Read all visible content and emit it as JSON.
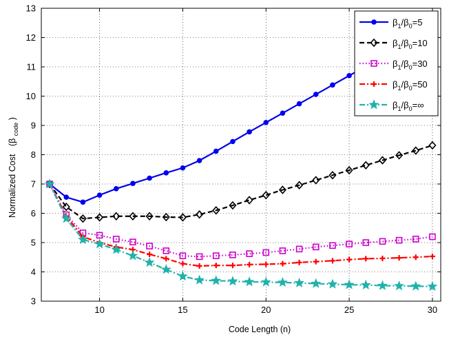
{
  "chart_data": {
    "type": "line",
    "xlabel": "Code Length (n)",
    "ylabel": "Normalized Cost",
    "ylabel_suffix_main": "(β",
    "ylabel_suffix_sub": "code",
    "ylabel_suffix_end": ")",
    "xlim": [
      6.5,
      30.5
    ],
    "ylim": [
      3,
      13
    ],
    "xticks": [
      10,
      15,
      20,
      25,
      30
    ],
    "yticks": [
      3,
      4,
      5,
      6,
      7,
      8,
      9,
      10,
      11,
      12,
      13
    ],
    "grid": true,
    "legend_position": "top-right",
    "x": [
      7,
      8,
      9,
      10,
      11,
      12,
      13,
      14,
      15,
      16,
      17,
      18,
      19,
      20,
      21,
      22,
      23,
      24,
      25,
      26,
      27,
      28,
      29,
      30
    ],
    "series": [
      {
        "name": "β1/β0=5",
        "legend_parts": [
          "β",
          "1",
          "/β",
          "0",
          "=5"
        ],
        "color": "#0000ee",
        "dash": "solid",
        "marker": "circle",
        "values": [
          7.0,
          6.55,
          6.38,
          6.62,
          6.84,
          7.02,
          7.2,
          7.38,
          7.55,
          7.8,
          8.12,
          8.45,
          8.78,
          9.1,
          9.42,
          9.74,
          10.06,
          10.38,
          10.7,
          11.02,
          11.34,
          11.66,
          11.98,
          12.3
        ]
      },
      {
        "name": "β1/β0=10",
        "legend_parts": [
          "β",
          "1",
          "/β",
          "0",
          "=10"
        ],
        "color": "#000000",
        "dash": "dashed",
        "marker": "diamond",
        "values": [
          7.0,
          6.22,
          5.82,
          5.86,
          5.9,
          5.9,
          5.9,
          5.87,
          5.86,
          5.96,
          6.1,
          6.27,
          6.45,
          6.62,
          6.8,
          6.96,
          7.13,
          7.3,
          7.47,
          7.64,
          7.81,
          7.98,
          8.14,
          8.32
        ]
      },
      {
        "name": "β1/β0=30",
        "legend_parts": [
          "β",
          "1",
          "/β",
          "0",
          "=30"
        ],
        "color": "#cc00cc",
        "dash": "dotted",
        "marker": "square",
        "values": [
          7.0,
          5.95,
          5.33,
          5.25,
          5.12,
          5.02,
          4.88,
          4.72,
          4.55,
          4.52,
          4.55,
          4.58,
          4.62,
          4.66,
          4.72,
          4.78,
          4.85,
          4.9,
          4.95,
          5.0,
          5.04,
          5.08,
          5.12,
          5.2
        ]
      },
      {
        "name": "β1/β0=50",
        "legend_parts": [
          "β",
          "1",
          "/β",
          "0",
          "=50"
        ],
        "color": "#ff0000",
        "dash": "dashdot",
        "marker": "plus",
        "values": [
          7.0,
          5.9,
          5.2,
          5.0,
          4.85,
          4.76,
          4.6,
          4.45,
          4.28,
          4.2,
          4.22,
          4.22,
          4.25,
          4.26,
          4.28,
          4.32,
          4.35,
          4.38,
          4.42,
          4.45,
          4.46,
          4.48,
          4.5,
          4.53
        ]
      },
      {
        "name": "β1/β0=∞",
        "legend_parts": [
          "β",
          "1",
          "/β",
          "0",
          "=∞"
        ],
        "color": "#20b2aa",
        "dash": "dashdot",
        "marker": "star",
        "values": [
          7.0,
          5.82,
          5.1,
          4.95,
          4.76,
          4.55,
          4.32,
          4.08,
          3.85,
          3.72,
          3.7,
          3.68,
          3.66,
          3.65,
          3.64,
          3.62,
          3.6,
          3.58,
          3.56,
          3.55,
          3.53,
          3.52,
          3.51,
          3.5
        ]
      }
    ]
  }
}
